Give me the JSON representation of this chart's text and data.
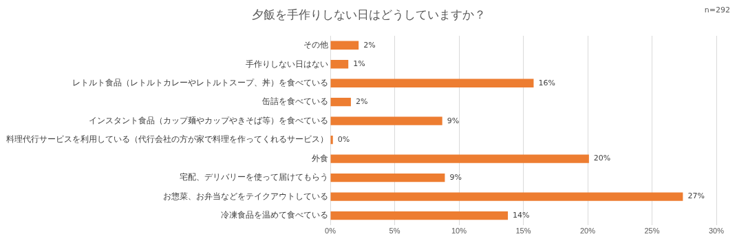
{
  "chart_data": {
    "type": "bar",
    "orientation": "horizontal",
    "title": "夕飯を手作りしない日はどうしていますか？",
    "annotations": [
      "n=292"
    ],
    "categories": [
      "その他",
      "手作りしない日はない",
      "レトルト食品（レトルトカレーやレトルトスープ、丼）を食べている",
      "缶詰を食べている",
      "インスタント食品（カップ麺やカップやきそば等）を食べている",
      "料理代行サービスを利用している（代行会社の方が家で料理を作ってくれるサービス）",
      "外食",
      "宅配、デリバリーを使って届けてもらう",
      "お惣菜、お弁当などをテイクアウトしている",
      "冷凍食品を温めて食べている"
    ],
    "values": [
      2.2,
      1.4,
      15.8,
      1.6,
      8.7,
      0.2,
      20.1,
      8.9,
      27.4,
      13.8
    ],
    "value_labels": [
      "2%",
      "1%",
      "16%",
      "2%",
      "9%",
      "0%",
      "20%",
      "9%",
      "27%",
      "14%"
    ],
    "color": "#ed7d31",
    "xlim": [
      0,
      30
    ],
    "xticks": [
      {
        "value": 0,
        "label": "0%"
      },
      {
        "value": 5,
        "label": "5%"
      },
      {
        "value": 10,
        "label": "10%"
      },
      {
        "value": 15,
        "label": "15%"
      },
      {
        "value": 20,
        "label": "20%"
      },
      {
        "value": 25,
        "label": "25%"
      },
      {
        "value": 30,
        "label": "30%"
      }
    ],
    "grid": "x",
    "legend": false
  }
}
